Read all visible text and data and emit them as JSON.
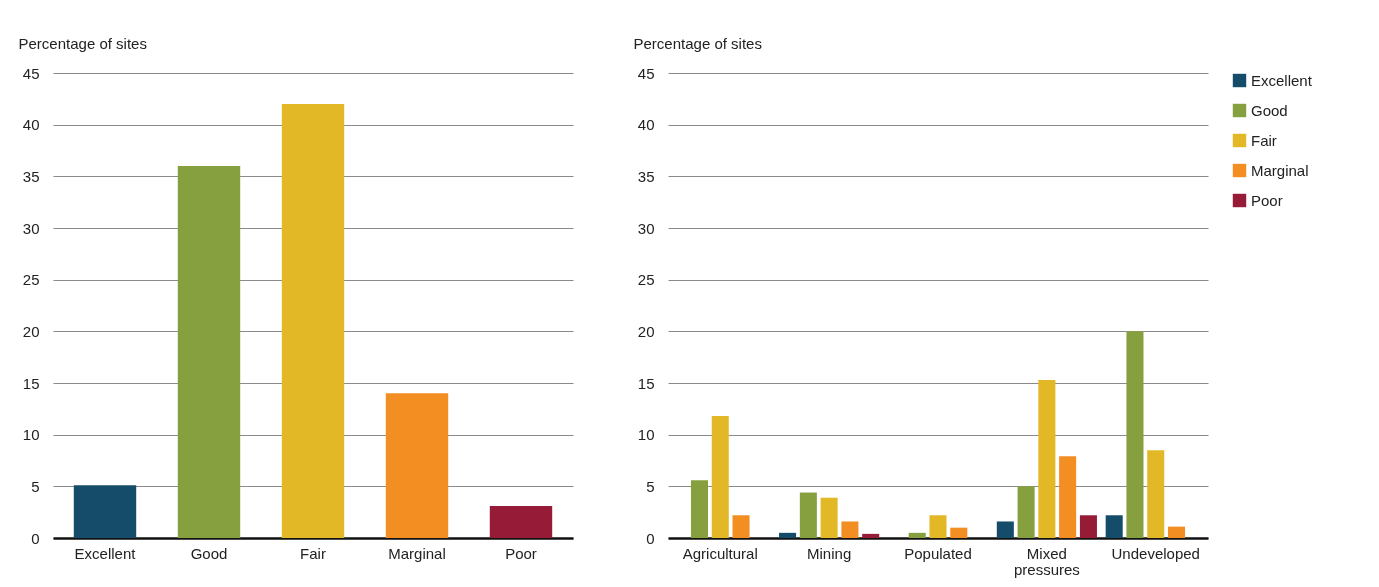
{
  "chart_data": [
    {
      "type": "bar",
      "ylabel": "Percentage of sites",
      "categories": [
        "Excellent",
        "Good",
        "Fair",
        "Marginal",
        "Poor"
      ],
      "values": [
        5.1,
        36,
        42,
        14,
        3.1
      ],
      "colors": [
        "#154c69",
        "#86a03f",
        "#e3b826",
        "#f28e22",
        "#961b36"
      ],
      "ylim": [
        0,
        45
      ],
      "yticks": [
        0,
        5,
        10,
        15,
        20,
        25,
        30,
        35,
        40,
        45
      ],
      "grid": "y"
    },
    {
      "type": "bar",
      "ylabel": "Percentage of sites",
      "categories": [
        "Agricultural",
        "Mining",
        "Populated",
        "Mixed pressures",
        "Undeveloped"
      ],
      "ylim": [
        0,
        45
      ],
      "yticks": [
        0,
        5,
        10,
        15,
        20,
        25,
        30,
        35,
        40,
        45
      ],
      "grid": "y",
      "legend": "right",
      "series": [
        {
          "name": "Excellent",
          "color": "#154c69",
          "values": [
            0,
            0.5,
            0,
            1.6,
            2.2
          ]
        },
        {
          "name": "Good",
          "color": "#86a03f",
          "values": [
            5.6,
            4.4,
            0.5,
            5.0,
            20.0
          ]
        },
        {
          "name": "Fair",
          "color": "#e3b826",
          "values": [
            11.8,
            3.9,
            2.2,
            15.3,
            8.5
          ]
        },
        {
          "name": "Marginal",
          "color": "#f28e22",
          "values": [
            2.2,
            1.6,
            1.0,
            7.9,
            1.1
          ]
        },
        {
          "name": "Poor",
          "color": "#961b36",
          "values": [
            0,
            0.4,
            0,
            2.2,
            0
          ]
        }
      ]
    }
  ]
}
